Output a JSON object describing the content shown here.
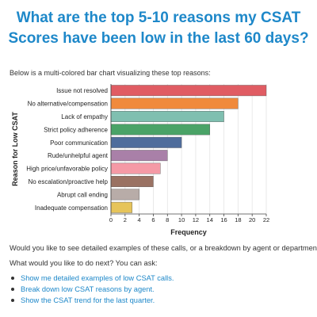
{
  "header": {
    "title": "What are the top 5-10 reasons my CSAT Scores have been low in the last 60 days?"
  },
  "intro_text": "Below is a multi-colored bar chart visualizing these top reasons:",
  "chart_data": {
    "type": "bar",
    "orientation": "horizontal",
    "title": "",
    "xlabel": "Frequency",
    "ylabel": "Reason for Low CSAT",
    "xlim": [
      0,
      22
    ],
    "xticks": [
      0,
      2,
      4,
      6,
      8,
      10,
      12,
      14,
      16,
      18,
      20,
      22
    ],
    "grid": true,
    "categories": [
      "Issue not resolved",
      "No alternative/compensation",
      "Lack of empathy",
      "Strict policy adherence",
      "Poor communication",
      "Rude/unhelpful agent",
      "High price/unfavorable policy",
      "No escalation/proactive help",
      "Abrupt call ending",
      "Inadequate compensation"
    ],
    "values": [
      22,
      18,
      16,
      14,
      10,
      8,
      7,
      6,
      4,
      3
    ],
    "colors": [
      "#e05c63",
      "#f08a3c",
      "#7fbfb0",
      "#4aa367",
      "#4f6d9c",
      "#a980a8",
      "#f59aa6",
      "#9a7263",
      "#b8aca8",
      "#e6c45a"
    ]
  },
  "followup": {
    "question": "Would you like to see detailed examples of these calls, or a breakdown by agent or department?",
    "next_prompt": "What would you like to do next? You can ask:",
    "links": [
      "Show me detailed examples of low CSAT calls.",
      "Break down low CSAT reasons by agent.",
      "Show the CSAT trend for the last quarter."
    ]
  }
}
